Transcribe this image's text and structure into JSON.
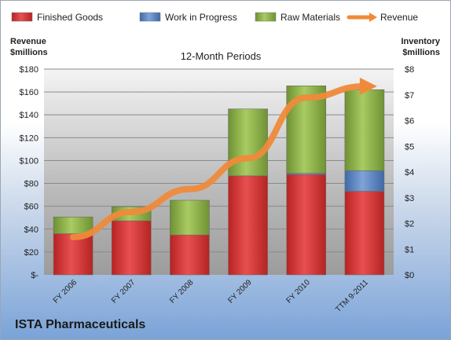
{
  "company": "ISTA Pharmaceuticals",
  "chart_data": {
    "type": "bar",
    "title": "12-Month Periods",
    "categories": [
      "FY 2006",
      "FY 2007",
      "FY 2008",
      "FY 2009",
      "FY 2010",
      "TTM 9-2011"
    ],
    "series": [
      {
        "name": "Finished Goods",
        "axis": "right",
        "color": "#d93939",
        "values": [
          1.6,
          2.1,
          1.55,
          3.85,
          3.9,
          3.25
        ]
      },
      {
        "name": "Work in Progress",
        "axis": "right",
        "color": "#5b86c8",
        "values": [
          0.0,
          0.0,
          0.0,
          0.0,
          0.05,
          0.8
        ]
      },
      {
        "name": "Raw Materials",
        "axis": "right",
        "color": "#93b94a",
        "values": [
          0.65,
          0.55,
          1.35,
          2.6,
          3.4,
          3.15
        ]
      }
    ],
    "line_series": {
      "name": "Revenue",
      "axis": "left",
      "color": "#ef8a3a",
      "values": [
        33,
        55,
        75,
        102,
        155,
        165
      ]
    },
    "left_axis": {
      "label_line1": "Revenue",
      "label_line2": "$millions",
      "ylim": [
        0,
        180
      ],
      "ticks": [
        "$-",
        "$20",
        "$40",
        "$60",
        "$80",
        "$100",
        "$120",
        "$140",
        "$160",
        "$180"
      ]
    },
    "right_axis": {
      "label_line1": "Inventory",
      "label_line2": "$millions",
      "ylim": [
        0,
        8
      ],
      "ticks": [
        "$0",
        "$1",
        "$2",
        "$3",
        "$4",
        "$5",
        "$6",
        "$7",
        "$8"
      ]
    },
    "legend": {
      "placement": "top",
      "entries": [
        "Finished Goods",
        "Work in Progress",
        "Raw Materials",
        "Revenue"
      ]
    },
    "grid": true
  }
}
